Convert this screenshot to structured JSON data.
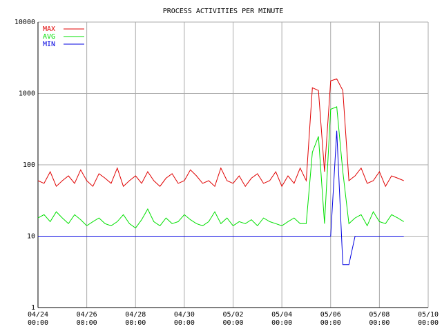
{
  "chart_data": {
    "type": "line",
    "title": "PROCESS ACTIVITIES PER MINUTE",
    "log_scale": true,
    "grid": true,
    "legend": "top-left",
    "x": [
      "04/24 00:00",
      "04/24 06:00",
      "04/24 12:00",
      "04/24 18:00",
      "04/25 00:00",
      "04/25 06:00",
      "04/25 12:00",
      "04/25 18:00",
      "04/26 00:00",
      "04/26 06:00",
      "04/26 12:00",
      "04/26 18:00",
      "04/27 00:00",
      "04/27 06:00",
      "04/27 12:00",
      "04/27 18:00",
      "04/28 00:00",
      "04/28 06:00",
      "04/28 12:00",
      "04/28 18:00",
      "04/29 00:00",
      "04/29 06:00",
      "04/29 12:00",
      "04/29 18:00",
      "04/30 00:00",
      "04/30 06:00",
      "04/30 12:00",
      "04/30 18:00",
      "05/01 00:00",
      "05/01 06:00",
      "05/01 12:00",
      "05/01 18:00",
      "05/02 00:00",
      "05/02 06:00",
      "05/02 12:00",
      "05/02 18:00",
      "05/03 00:00",
      "05/03 06:00",
      "05/03 12:00",
      "05/03 18:00",
      "05/04 00:00",
      "05/04 06:00",
      "05/04 12:00",
      "05/04 18:00",
      "05/05 00:00",
      "05/05 06:00",
      "05/05 12:00",
      "05/05 18:00",
      "05/06 00:00",
      "05/06 06:00",
      "05/06 12:00",
      "05/06 18:00",
      "05/07 00:00",
      "05/07 06:00",
      "05/07 12:00",
      "05/07 18:00",
      "05/08 00:00",
      "05/08 06:00",
      "05/08 12:00",
      "05/08 18:00",
      "05/09 00:00"
    ],
    "series": [
      {
        "name": "MAX",
        "color": "#e00000",
        "values": [
          60,
          55,
          80,
          50,
          60,
          70,
          55,
          85,
          60,
          50,
          75,
          65,
          55,
          90,
          50,
          60,
          70,
          55,
          80,
          60,
          50,
          65,
          75,
          55,
          60,
          85,
          70,
          55,
          60,
          50,
          90,
          60,
          55,
          70,
          50,
          65,
          75,
          55,
          60,
          80,
          50,
          70,
          55,
          90,
          60,
          1200,
          1100,
          80,
          1500,
          1600,
          1100,
          60,
          70,
          90,
          55,
          60,
          80,
          50,
          70,
          65,
          60
        ]
      },
      {
        "name": "AVG",
        "color": "#00e000",
        "values": [
          18,
          20,
          16,
          22,
          18,
          15,
          20,
          17,
          14,
          16,
          18,
          15,
          14,
          16,
          20,
          15,
          13,
          17,
          24,
          16,
          14,
          18,
          15,
          16,
          20,
          17,
          15,
          14,
          16,
          22,
          15,
          18,
          14,
          16,
          15,
          17,
          14,
          18,
          16,
          15,
          14,
          16,
          18,
          15,
          15,
          150,
          250,
          15,
          600,
          650,
          80,
          15,
          18,
          20,
          14,
          22,
          16,
          15,
          20,
          18,
          16
        ]
      },
      {
        "name": "MIN",
        "color": "#0000e0",
        "values": [
          10,
          10,
          10,
          10,
          10,
          10,
          10,
          10,
          10,
          10,
          10,
          10,
          10,
          10,
          10,
          10,
          10,
          10,
          10,
          10,
          10,
          10,
          10,
          10,
          10,
          10,
          10,
          10,
          10,
          10,
          10,
          10,
          10,
          10,
          10,
          10,
          10,
          10,
          10,
          10,
          10,
          10,
          10,
          10,
          10,
          10,
          10,
          10,
          10,
          300,
          4,
          4,
          10,
          10,
          10,
          10,
          10,
          10,
          10,
          10,
          10
        ]
      }
    ],
    "xlim": [
      "04/24 00:00",
      "05/10 00:00"
    ],
    "xticks": [
      "04/24 00:00",
      "04/26 00:00",
      "04/28 00:00",
      "04/30 00:00",
      "05/02 00:00",
      "05/04 00:00",
      "05/06 00:00",
      "05/08 00:00",
      "05/10 00:00"
    ],
    "ylim": [
      1,
      10000
    ],
    "yticks": [
      1,
      10,
      100,
      1000,
      10000
    ]
  }
}
